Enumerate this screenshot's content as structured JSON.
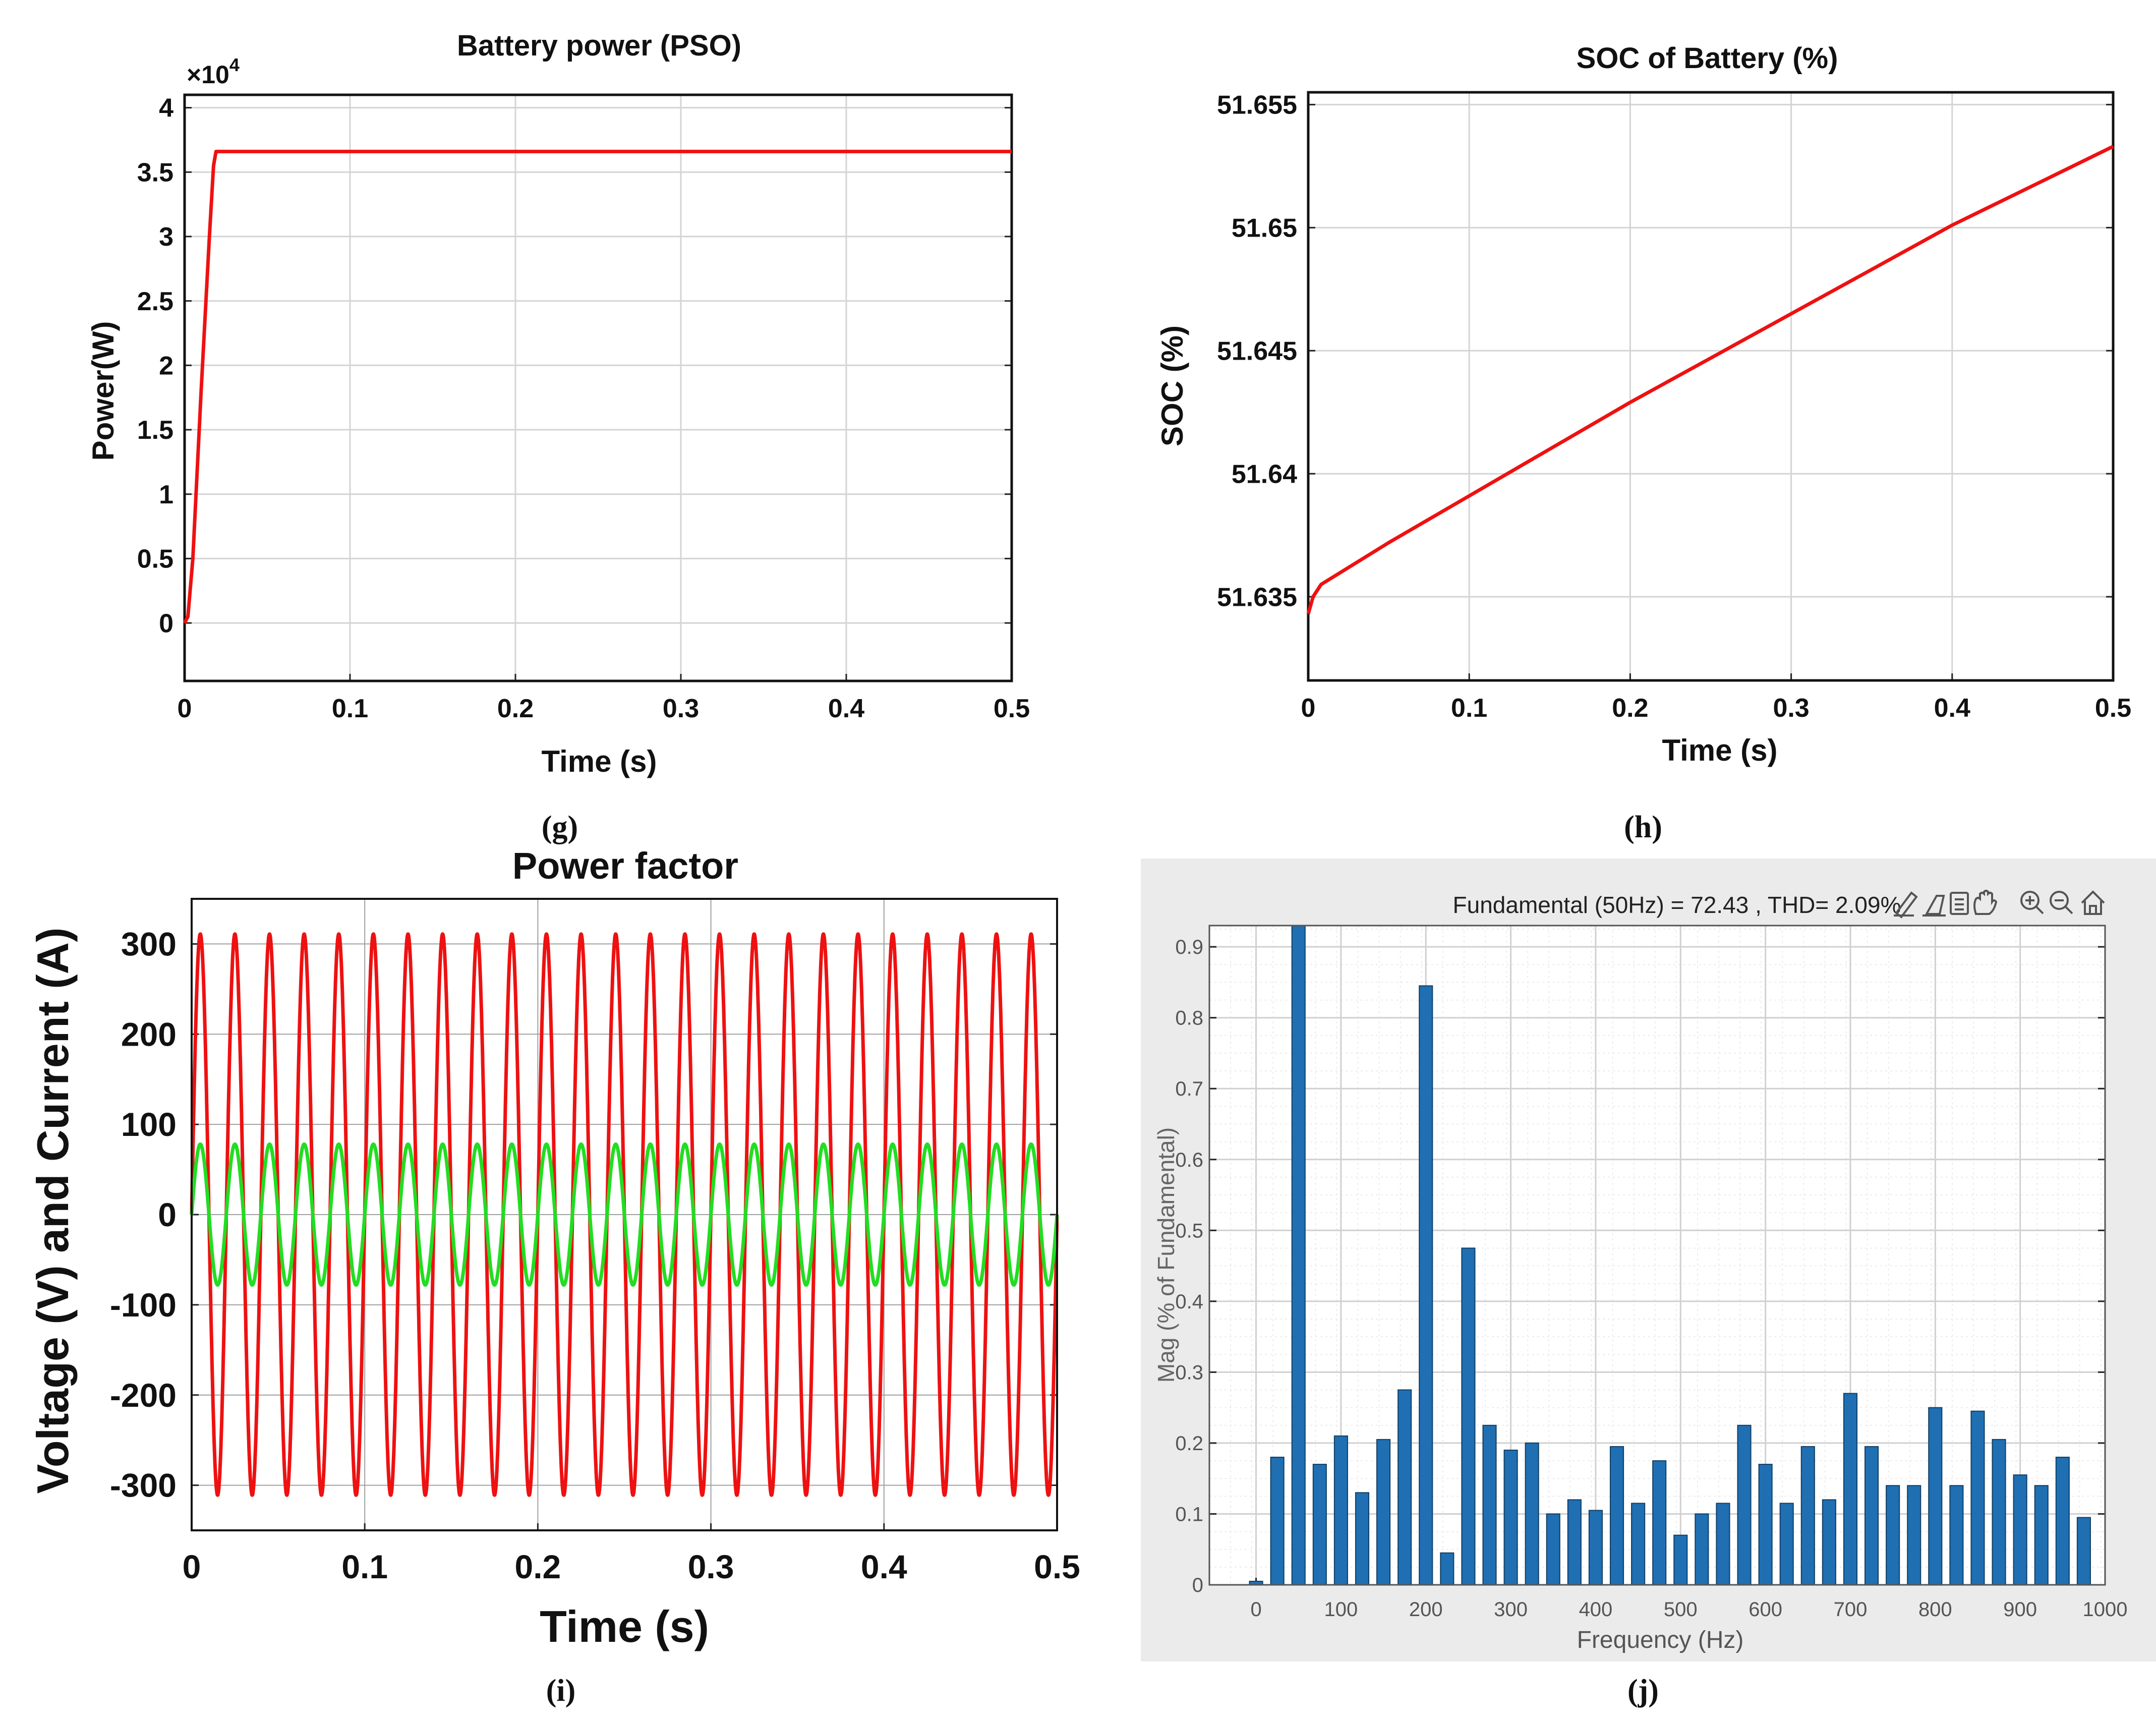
{
  "panels": {
    "g": {
      "caption": "(g)",
      "exponent_base": "×10",
      "exponent_power": "4",
      "chart_data": {
        "type": "line",
        "title": "Battery power (PSO)",
        "xlabel": "Time (s)",
        "ylabel": "Power(W)",
        "xlim": [
          0,
          0.5
        ],
        "ylim": [
          -0.45,
          4.1
        ],
        "y_multiplier": 10000,
        "xticks": [
          0,
          0.1,
          0.2,
          0.3,
          0.4,
          0.5
        ],
        "xtick_labels": [
          "0",
          "0.1",
          "0.2",
          "0.3",
          "0.4",
          "0.5"
        ],
        "yticks": [
          0,
          0.5,
          1,
          1.5,
          2,
          2.5,
          3,
          3.5,
          4
        ],
        "ytick_labels": [
          "0",
          "0.5",
          "1",
          "1.5",
          "2",
          "2.5",
          "3",
          "3.5",
          "4"
        ],
        "grid": true,
        "series": [
          {
            "color": "#ee1111",
            "x": [
              0,
              0.002,
              0.005,
              0.01,
              0.015,
              0.0175,
              0.019,
              0.02,
              0.05,
              0.1,
              0.2,
              0.3,
              0.4,
              0.5
            ],
            "y": [
              0,
              0.05,
              0.5,
              1.8,
              3.0,
              3.55,
              3.66,
              3.66,
              3.66,
              3.66,
              3.66,
              3.66,
              3.66,
              3.66
            ]
          }
        ]
      }
    },
    "h": {
      "caption": "(h)",
      "chart_data": {
        "type": "line",
        "title": "SOC of Battery (%)",
        "xlabel": "Time (s)",
        "ylabel": "SOC (%)",
        "xlim": [
          0,
          0.5
        ],
        "ylim": [
          51.6316,
          51.6555
        ],
        "xticks": [
          0,
          0.1,
          0.2,
          0.3,
          0.4,
          0.5
        ],
        "xtick_labels": [
          "0",
          "0.1",
          "0.2",
          "0.3",
          "0.4",
          "0.5"
        ],
        "yticks": [
          51.635,
          51.64,
          51.645,
          51.65,
          51.655
        ],
        "ytick_labels": [
          "51.635",
          "51.64",
          "51.645",
          "51.65",
          "51.655"
        ],
        "grid": true,
        "series": [
          {
            "color": "#ee1111",
            "x": [
              0,
              0.003,
              0.008,
              0.05,
              0.1,
              0.15,
              0.2,
              0.25,
              0.3,
              0.35,
              0.4,
              0.45,
              0.5
            ],
            "y": [
              51.6343,
              51.635,
              51.6355,
              51.6372,
              51.6391,
              51.641,
              51.6429,
              51.6447,
              51.6465,
              51.6483,
              51.6501,
              51.6517,
              51.6533
            ]
          }
        ]
      }
    },
    "i": {
      "caption": "(i)",
      "chart_data": {
        "type": "line",
        "title": "Power factor",
        "xlabel": "Time (s)",
        "ylabel": "Voltage (V) and Current (A)",
        "xlim": [
          0,
          0.5
        ],
        "ylim": [
          -350,
          350
        ],
        "xticks": [
          0,
          0.1,
          0.2,
          0.3,
          0.4,
          0.5
        ],
        "xtick_labels": [
          "0",
          "0.1",
          "0.2",
          "0.3",
          "0.4",
          "0.5"
        ],
        "yticks": [
          -300,
          -200,
          -100,
          0,
          100,
          200,
          300
        ],
        "ytick_labels": [
          "-300",
          "-200",
          "-100",
          "0",
          "100",
          "200",
          "300"
        ],
        "grid": true,
        "series": [
          {
            "color": "#ee1111",
            "waveform": "sine",
            "frequency_hz": 50,
            "amplitude": 311,
            "phase_deg": 0
          },
          {
            "color": "#22dd22",
            "waveform": "sine",
            "frequency_hz": 50,
            "amplitude": 78,
            "phase_deg": 0
          }
        ]
      }
    },
    "j": {
      "caption": "(j)",
      "toolbar_icons": [
        "brush-icon",
        "erase-icon",
        "data-tip-icon",
        "pan-icon",
        "zoom-in-icon",
        "zoom-out-icon",
        "home-icon"
      ],
      "chart_data": {
        "type": "bar",
        "title": "Fundamental (50Hz) = 72.43 , THD= 2.09%",
        "xlabel": "Frequency (Hz)",
        "ylabel": "Mag (% of Fundamental)",
        "xlim": [
          -55,
          1000
        ],
        "ylim": [
          0,
          0.93
        ],
        "xticks": [
          0,
          100,
          200,
          300,
          400,
          500,
          600,
          700,
          800,
          900,
          1000
        ],
        "xtick_labels": [
          "0",
          "100",
          "200",
          "300",
          "400",
          "500",
          "600",
          "700",
          "800",
          "900",
          "1000"
        ],
        "yticks": [
          0,
          0.1,
          0.2,
          0.3,
          0.4,
          0.5,
          0.6,
          0.7,
          0.8,
          0.9
        ],
        "ytick_labels": [
          "0",
          "0.1",
          "0.2",
          "0.3",
          "0.4",
          "0.5",
          "0.6",
          "0.7",
          "0.8",
          "0.9"
        ],
        "grid": true,
        "bar_color": "#1f6fb2",
        "x": [
          0,
          25,
          50,
          75,
          100,
          125,
          150,
          175,
          200,
          225,
          250,
          275,
          300,
          325,
          350,
          375,
          400,
          425,
          450,
          475,
          500,
          525,
          550,
          575,
          600,
          625,
          650,
          675,
          700,
          725,
          750,
          775,
          800,
          825,
          850,
          875,
          900,
          925,
          950,
          975
        ],
        "values": [
          0.005,
          0.18,
          0.93,
          0.17,
          0.21,
          0.13,
          0.205,
          0.275,
          0.845,
          0.045,
          0.475,
          0.225,
          0.19,
          0.2,
          0.1,
          0.12,
          0.105,
          0.195,
          0.115,
          0.175,
          0.07,
          0.1,
          0.115,
          0.225,
          0.17,
          0.115,
          0.195,
          0.12,
          0.27,
          0.195,
          0.14,
          0.14,
          0.25,
          0.14,
          0.245,
          0.205,
          0.155,
          0.14,
          0.18,
          0.095
        ]
      }
    }
  }
}
